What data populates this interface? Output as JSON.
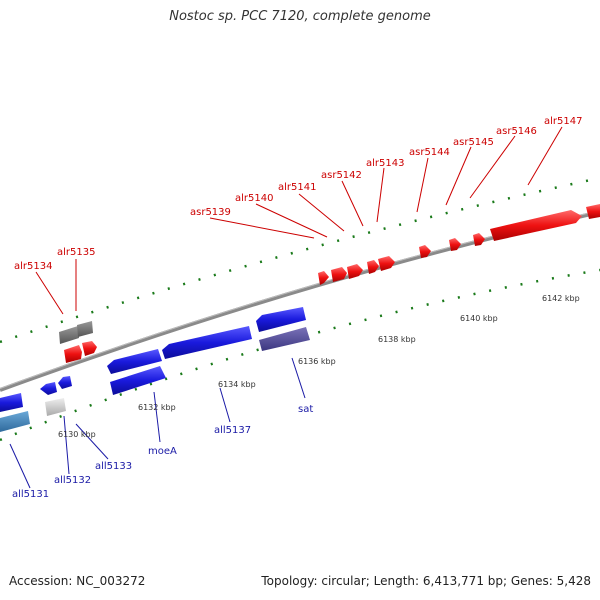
{
  "title": "Nostoc sp. PCC 7120, complete genome",
  "footer": {
    "accession": "Accession: NC_003272",
    "summary": "Topology: circular; Length: 6,413,771 bp; Genes: 5,428"
  },
  "colors": {
    "forward_gene": "#ee1111",
    "reverse_gene": "#1a1add",
    "backbone": "#8a8a8a",
    "tick": "#1a7a1a",
    "top_label": "#cc0000",
    "bottom_label": "#1a1aa6"
  },
  "scale": {
    "ticks": [
      "6130 kbp",
      "6132 kbp",
      "6134 kbp",
      "6136 kbp",
      "6138 kbp",
      "6140 kbp",
      "6142 kbp"
    ]
  },
  "top_genes": [
    "alr5134",
    "alr5135",
    "asr5139",
    "alr5140",
    "alr5141",
    "asr5142",
    "alr5143",
    "asr5144",
    "asr5145",
    "asr5146",
    "alr5147"
  ],
  "bottom_genes": [
    "all5131",
    "all5132",
    "all5133",
    "moeA",
    "all5137",
    "sat"
  ]
}
